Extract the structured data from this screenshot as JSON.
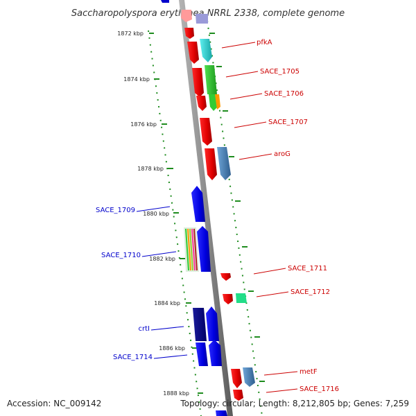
{
  "title": "Saccharopolyspora erythraea NRRL 2338, complete genome",
  "footer": {
    "accession": "Accession: NC_009142",
    "topology": "Topology: circular; Length: 8,212,805 bp; Genes: 7,259"
  },
  "kbp_ticks": [
    "1872 kbp",
    "1874 kbp",
    "1876 kbp",
    "1878 kbp",
    "1880 kbp",
    "1882 kbp",
    "1884 kbp",
    "1886 kbp",
    "1888 kbp"
  ],
  "genes_forward": [
    "pfkA",
    "SACE_1705",
    "SACE_1706",
    "SACE_1707",
    "aroG",
    "SACE_1711",
    "SACE_1712",
    "metF",
    "SACE_1716"
  ],
  "genes_reverse": [
    "SACE_1709",
    "SACE_1710",
    "crtI",
    "SACE_1714"
  ],
  "colors": {
    "forward_strand": "#ff0000",
    "reverse_strand": "#0000ff",
    "reverse_dark": "#000080",
    "backbone": "#8c8c8c",
    "tick_marks": "#1e8c1e",
    "forward_label": "#cc0000",
    "reverse_label": "#0000cc"
  }
}
